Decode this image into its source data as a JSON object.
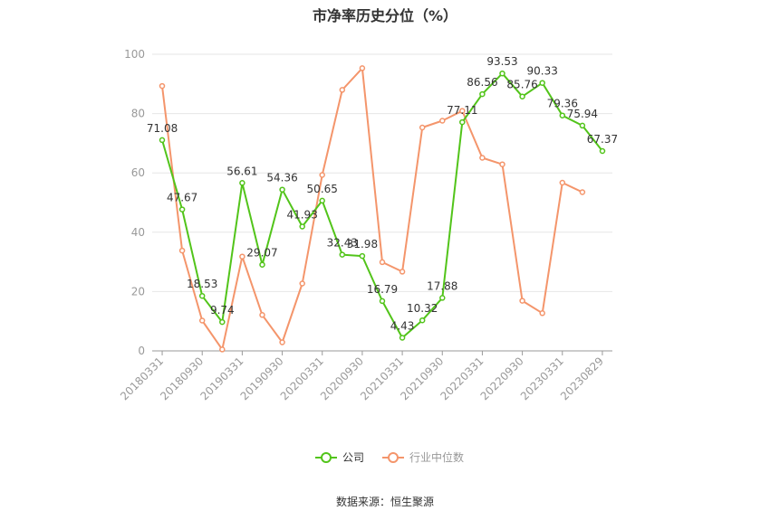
{
  "chart_data": {
    "type": "line",
    "title": "市净率历史分位（%）",
    "xlabel": "",
    "ylabel": "",
    "ylim": [
      0,
      100
    ],
    "yticks": [
      0,
      20,
      40,
      60,
      80,
      100
    ],
    "grid": true,
    "legend_position": "bottom",
    "x": [
      "20180331",
      "20180630",
      "20180930",
      "20181231",
      "20190331",
      "20190630",
      "20190930",
      "20191231",
      "20200331",
      "20200630",
      "20200930",
      "20201231",
      "20210331",
      "20210630",
      "20210930",
      "20211231",
      "20220331",
      "20220630",
      "20220930",
      "20221231",
      "20230331",
      "20230630",
      "20230829"
    ],
    "x_tick_labels": [
      "20180331",
      "20180930",
      "20190331",
      "20190930",
      "20200331",
      "20200930",
      "20210331",
      "20210930",
      "20220331",
      "20220930",
      "20230331",
      "20230829"
    ],
    "series": [
      {
        "name": "公司",
        "color": "#52c41a",
        "values": [
          71.08,
          47.67,
          18.53,
          9.74,
          56.61,
          29.07,
          54.36,
          41.93,
          50.65,
          32.43,
          31.98,
          16.79,
          4.43,
          10.32,
          17.88,
          77.11,
          86.56,
          93.53,
          85.76,
          90.33,
          79.36,
          75.94,
          67.37
        ],
        "data_labels": [
          "71.08",
          "47.67",
          "18.53",
          "9.74",
          "56.61",
          "29.07",
          "54.36",
          "41.93",
          "50.65",
          "32.43",
          "31.98",
          "16.79",
          "4.43",
          "10.32",
          "17.88",
          "77.11",
          "86.56",
          "93.53",
          "85.76",
          "90.33",
          "79.36",
          "75.94",
          "67.37"
        ]
      },
      {
        "name": "行业中位数",
        "color": "#f4956b",
        "values": [
          89.3,
          33.8,
          10.2,
          0.5,
          31.8,
          12.1,
          2.9,
          22.7,
          59.3,
          88.0,
          95.3,
          29.9,
          26.7,
          75.3,
          77.6,
          80.9,
          65.1,
          62.9,
          16.9,
          12.7,
          56.7,
          53.5,
          null
        ]
      }
    ]
  },
  "source_text": "数据来源：恒生聚源"
}
